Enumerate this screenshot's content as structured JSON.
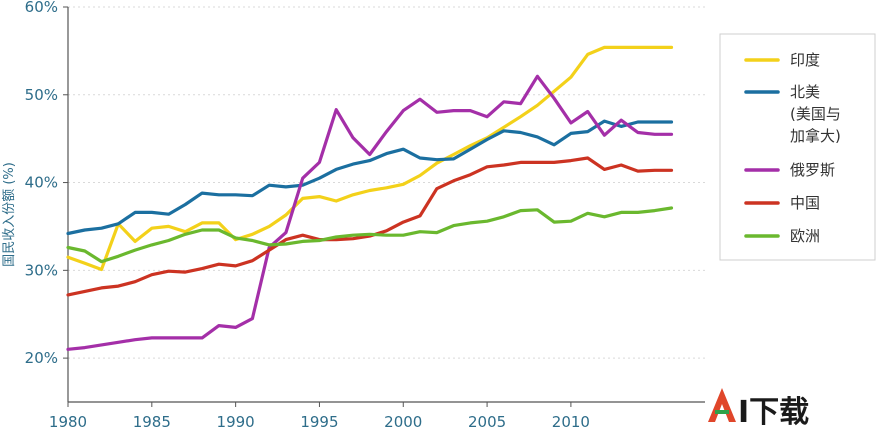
{
  "chart_data": {
    "type": "line",
    "ylabel": "国民收入份额 (%)",
    "xlabel": "",
    "title": "",
    "xlim": [
      1980,
      2018
    ],
    "ylim": [
      15,
      60
    ],
    "x_ticks": [
      1980,
      1985,
      1990,
      1995,
      2000,
      2005,
      2010
    ],
    "x_tick_labels": [
      "1980",
      "1985",
      "1990",
      "1995",
      "2000",
      "2005",
      "2010"
    ],
    "y_ticks": [
      20,
      30,
      40,
      50,
      60
    ],
    "y_tick_labels": [
      "20%",
      "30%",
      "40%",
      "50%",
      "60%"
    ],
    "grid": "horizontal",
    "legend_position": "right",
    "x": [
      1980,
      1981,
      1982,
      1983,
      1984,
      1985,
      1986,
      1987,
      1988,
      1989,
      1990,
      1991,
      1992,
      1993,
      1994,
      1995,
      1996,
      1997,
      1998,
      1999,
      2000,
      2001,
      2002,
      2003,
      2004,
      2005,
      2006,
      2007,
      2008,
      2009,
      2010,
      2011,
      2012,
      2013,
      2014,
      2015,
      2016
    ],
    "series": [
      {
        "name": "印度",
        "color": "#f3d11a",
        "values": [
          31.5,
          30.8,
          30.1,
          35.3,
          33.3,
          34.8,
          35.0,
          34.4,
          35.4,
          35.4,
          33.5,
          34.1,
          35.0,
          36.3,
          38.2,
          38.4,
          37.9,
          38.6,
          39.1,
          39.4,
          39.8,
          40.8,
          42.2,
          43.2,
          44.2,
          45.1,
          46.3,
          47.5,
          48.8,
          50.4,
          52.0,
          54.6,
          55.4,
          55.4,
          55.4,
          55.4,
          55.4
        ]
      },
      {
        "name": "北美",
        "sublabel": "(美国与",
        "sublabel2": "加拿大)",
        "color": "#1b6fa0",
        "values": [
          34.2,
          34.6,
          34.8,
          35.3,
          36.6,
          36.6,
          36.4,
          37.5,
          38.8,
          38.6,
          38.6,
          38.5,
          39.7,
          39.5,
          39.7,
          40.5,
          41.5,
          42.1,
          42.5,
          43.3,
          43.8,
          42.8,
          42.6,
          42.7,
          43.8,
          44.9,
          45.9,
          45.7,
          45.2,
          44.3,
          45.6,
          45.8,
          47.0,
          46.4,
          46.9,
          46.9,
          46.9
        ]
      },
      {
        "name": "俄罗斯",
        "color": "#a42fa8",
        "values": [
          21.0,
          21.2,
          21.5,
          21.8,
          22.1,
          22.3,
          22.3,
          22.3,
          22.3,
          23.7,
          23.5,
          24.5,
          32.6,
          34.3,
          40.5,
          42.3,
          48.3,
          45.1,
          43.2,
          45.8,
          48.2,
          49.5,
          48.0,
          48.2,
          48.2,
          47.5,
          49.2,
          49.0,
          52.1,
          49.6,
          46.8,
          48.1,
          45.4,
          47.1,
          45.7,
          45.5,
          45.5
        ]
      },
      {
        "name": "中国",
        "color": "#cc3322",
        "values": [
          27.2,
          27.6,
          28.0,
          28.2,
          28.7,
          29.5,
          29.9,
          29.8,
          30.2,
          30.7,
          30.5,
          31.1,
          32.3,
          33.5,
          34.0,
          33.5,
          33.5,
          33.6,
          33.9,
          34.5,
          35.5,
          36.2,
          39.3,
          40.2,
          40.9,
          41.8,
          42.0,
          42.3,
          42.3,
          42.3,
          42.5,
          42.8,
          41.5,
          42.0,
          41.3,
          41.4,
          41.4
        ]
      },
      {
        "name": "欧洲",
        "color": "#6ab82e",
        "values": [
          32.6,
          32.2,
          31.0,
          31.6,
          32.3,
          32.9,
          33.4,
          34.1,
          34.6,
          34.6,
          33.7,
          33.4,
          32.9,
          33.0,
          33.3,
          33.4,
          33.8,
          34.0,
          34.1,
          34.0,
          34.0,
          34.4,
          34.3,
          35.1,
          35.4,
          35.6,
          36.1,
          36.8,
          36.9,
          35.5,
          35.6,
          36.5,
          36.1,
          36.6,
          36.6,
          36.8,
          37.1
        ]
      }
    ]
  },
  "watermark": {
    "text": "AI下载"
  }
}
